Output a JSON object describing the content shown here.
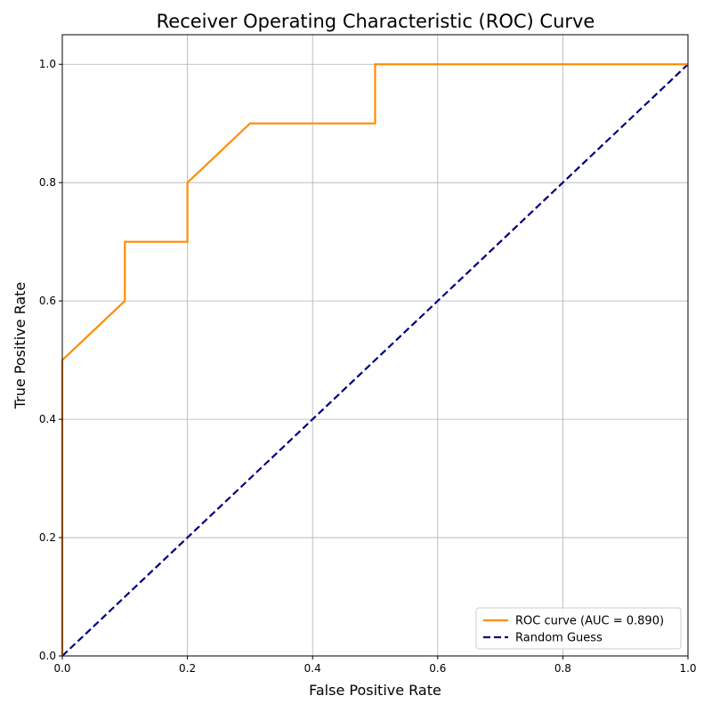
{
  "chart_data": {
    "type": "line",
    "title": "Receiver Operating Characteristic (ROC) Curve",
    "xlabel": "False Positive Rate",
    "ylabel": "True Positive Rate",
    "xlim": [
      0.0,
      1.0
    ],
    "ylim": [
      0.0,
      1.05
    ],
    "x_ticks": [
      0.0,
      0.2,
      0.4,
      0.6,
      0.8,
      1.0
    ],
    "y_ticks": [
      0.0,
      0.2,
      0.4,
      0.6,
      0.8,
      1.0
    ],
    "x_tick_labels": [
      "0.0",
      "0.2",
      "0.4",
      "0.6",
      "0.8",
      "1.0"
    ],
    "y_tick_labels": [
      "0.0",
      "0.2",
      "0.4",
      "0.6",
      "0.8",
      "1.0"
    ],
    "grid": true,
    "legend_position": "lower-right",
    "series": [
      {
        "name": "ROC curve (AUC = 0.890)",
        "color": "#ff8c00",
        "style": "solid",
        "points": [
          [
            0.0,
            0.0
          ],
          [
            0.0,
            0.5
          ],
          [
            0.1,
            0.6
          ],
          [
            0.1,
            0.7
          ],
          [
            0.2,
            0.7
          ],
          [
            0.2,
            0.8
          ],
          [
            0.3,
            0.9
          ],
          [
            0.5,
            0.9
          ],
          [
            0.5,
            1.0
          ],
          [
            1.0,
            1.0
          ]
        ]
      },
      {
        "name": "Random Guess",
        "color": "#000080",
        "style": "dashed",
        "points": [
          [
            0.0,
            0.0
          ],
          [
            1.0,
            1.0
          ]
        ]
      }
    ]
  }
}
